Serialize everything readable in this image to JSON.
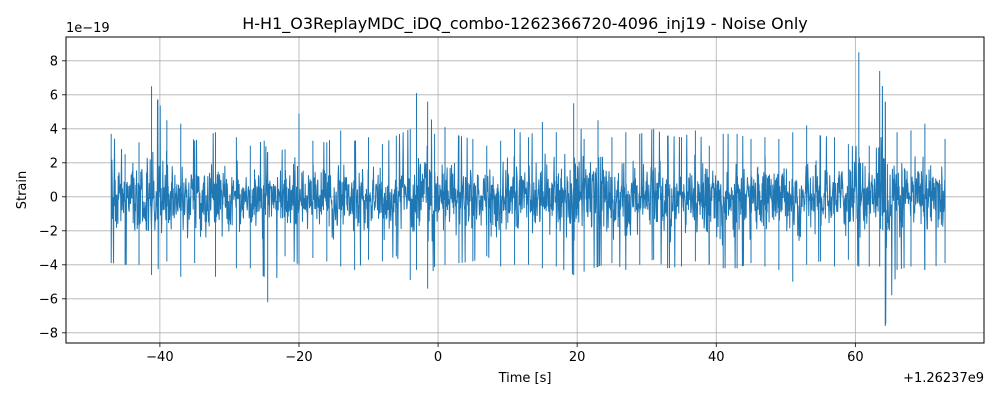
{
  "chart_data": {
    "type": "line",
    "title": "H-H1_O3ReplayMDC_iDQ_combo-1262366720-4096_inj19 - Noise Only",
    "xlabel": "Time [s]",
    "ylabel": "Strain",
    "x_offset_label": "+1.26237e9",
    "y_scale_label": "1e−19",
    "xlim": [
      -53.5,
      78.5
    ],
    "ylim": [
      -8.6,
      9.4
    ],
    "x_ticks": [
      -40,
      -20,
      0,
      20,
      40,
      60
    ],
    "x_tick_labels": [
      "−40",
      "−20",
      "0",
      "20",
      "40",
      "60"
    ],
    "y_ticks": [
      -8,
      -6,
      -4,
      -2,
      0,
      2,
      4,
      6,
      8
    ],
    "y_tick_labels": [
      "−8",
      "−6",
      "−4",
      "−2",
      "0",
      "2",
      "4",
      "6",
      "8"
    ],
    "grid": true,
    "series": [
      {
        "color": "#1f77b4",
        "x_range": [
          -47.0,
          72.9
        ],
        "envelope": {
          "x": [
            -47.0,
            -45,
            -43,
            -41.2,
            -39,
            -37,
            -35,
            -32,
            -29,
            -27,
            -25,
            -24.5,
            -22,
            -20,
            -18,
            -16,
            -14,
            -12,
            -10,
            -8,
            -6,
            -4,
            -3.1,
            -1.5,
            -0.5,
            1,
            3,
            5,
            7,
            9,
            11,
            13,
            15,
            17,
            19.5,
            21,
            23,
            25,
            27,
            29,
            31,
            33,
            35,
            37,
            39,
            41,
            43,
            45,
            47,
            49,
            51,
            53,
            55,
            57,
            59,
            60.5,
            62,
            63.5,
            64.3,
            66,
            68,
            70,
            72.9
          ],
          "upper": [
            3.7,
            2.5,
            3.2,
            6.5,
            4.5,
            4.3,
            3.3,
            3.8,
            3.5,
            3.0,
            3.3,
            2.6,
            2.8,
            4.9,
            3.3,
            3.2,
            3.9,
            3.3,
            3.5,
            3.1,
            3.6,
            4.0,
            6.1,
            5.6,
            3.7,
            4.1,
            3.6,
            3.4,
            3.0,
            3.3,
            4.0,
            3.5,
            4.4,
            3.8,
            5.5,
            3.4,
            4.5,
            3.5,
            3.8,
            3.7,
            4.0,
            3.6,
            3.5,
            3.9,
            3.0,
            3.7,
            3.7,
            3.4,
            3.5,
            3.4,
            3.8,
            4.2,
            3.6,
            3.5,
            3.1,
            8.5,
            3.0,
            7.4,
            5.6,
            3.8,
            3.9,
            4.3,
            3.4
          ],
          "lower": [
            -3.9,
            -4.0,
            -4.0,
            -4.6,
            -3.8,
            -4.7,
            -3.9,
            -4.7,
            -4.2,
            -4.2,
            -4.7,
            -6.2,
            -3.5,
            -4.0,
            -3.6,
            -3.8,
            -4.1,
            -4.3,
            -3.7,
            -3.8,
            -3.5,
            -4.9,
            -4.3,
            -5.4,
            -4.1,
            -4.0,
            -3.9,
            -3.8,
            -3.5,
            -4.1,
            -4.0,
            -4.0,
            -4.2,
            -4.1,
            -4.6,
            -4.4,
            -4.1,
            -3.9,
            -4.3,
            -4.0,
            -3.7,
            -4.2,
            -4.1,
            -3.8,
            -4.0,
            -4.2,
            -4.2,
            -3.9,
            -4.1,
            -4.3,
            -5.0,
            -4.0,
            -3.8,
            -4.1,
            -3.7,
            -4.1,
            -4.1,
            -4.1,
            -7.6,
            -4.3,
            -4.1,
            -4.3,
            -3.9
          ]
        }
      }
    ]
  }
}
